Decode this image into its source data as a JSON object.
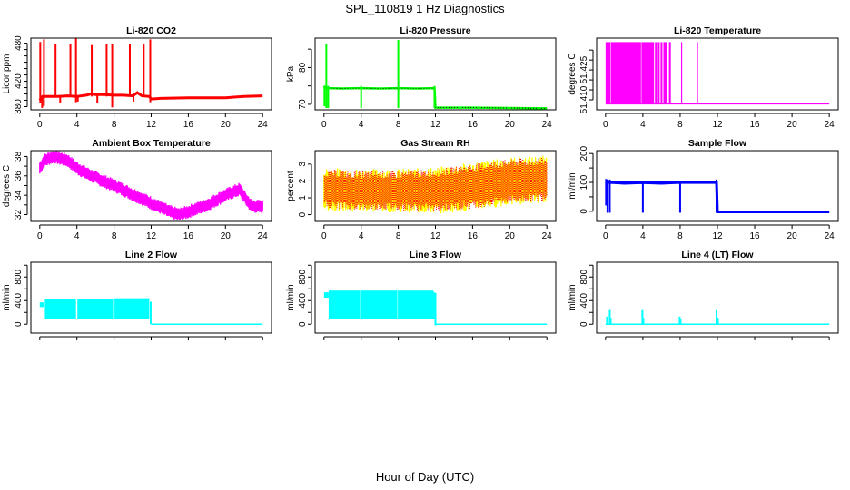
{
  "title": "SPL_110819  1 Hz Diagnostics",
  "xlabel": "Hour of Day (UTC)",
  "chart_data": [
    {
      "type": "line",
      "title": "Li-820 CO2",
      "ylabel": "Licor ppm",
      "color": "#ff0000",
      "xlim": [
        0,
        24
      ],
      "ylim": [
        375,
        488
      ],
      "xticks": [
        0,
        4,
        8,
        12,
        16,
        20,
        24
      ],
      "yticks": [
        380,
        390,
        400,
        410,
        420,
        430,
        440,
        450,
        460,
        470,
        480
      ],
      "yticklabels": {
        "380": "380",
        "420": "420",
        "480": "480"
      },
      "show_xlabels": true,
      "style": "line",
      "series": [
        {
          "name": "baseline",
          "x": [
            0,
            0.3,
            1,
            2,
            3,
            4,
            5,
            5.5,
            6,
            7,
            8,
            9,
            10,
            10.5,
            11,
            11.8,
            12,
            13,
            16,
            20,
            22,
            24
          ],
          "y": [
            390,
            396,
            396,
            396,
            397,
            396,
            398,
            400,
            399,
            399,
            398,
            398,
            397,
            402,
            397,
            396,
            392,
            393,
            394,
            394,
            396,
            397
          ]
        }
      ],
      "spikes": [
        {
          "x": 0.05,
          "lo": 385,
          "hi": 482
        },
        {
          "x": 0.25,
          "lo": 378,
          "hi": 395
        },
        {
          "x": 0.45,
          "lo": 381,
          "hi": 486
        },
        {
          "x": 1.7,
          "lo": 396,
          "hi": 478
        },
        {
          "x": 2.2,
          "lo": 386,
          "hi": 397
        },
        {
          "x": 3.3,
          "lo": 396,
          "hi": 479
        },
        {
          "x": 3.9,
          "lo": 387,
          "hi": 488
        },
        {
          "x": 4.1,
          "lo": 388,
          "hi": 398
        },
        {
          "x": 5.6,
          "lo": 396,
          "hi": 477
        },
        {
          "x": 6.2,
          "lo": 386,
          "hi": 399
        },
        {
          "x": 7.2,
          "lo": 396,
          "hi": 479
        },
        {
          "x": 7.8,
          "lo": 379,
          "hi": 478
        },
        {
          "x": 9.7,
          "lo": 397,
          "hi": 478
        },
        {
          "x": 10.1,
          "lo": 388,
          "hi": 397
        },
        {
          "x": 11.2,
          "lo": 396,
          "hi": 479
        },
        {
          "x": 11.9,
          "lo": 387,
          "hi": 486
        }
      ]
    },
    {
      "type": "line",
      "title": "Li-820 Pressure",
      "ylabel": "kPa",
      "color": "#00ff00",
      "xlim": [
        0,
        24
      ],
      "ylim": [
        68.5,
        88
      ],
      "xticks": [
        0,
        4,
        8,
        12,
        16,
        20,
        24
      ],
      "yticks": [
        70,
        75,
        80,
        85
      ],
      "yticklabels": {
        "70": "70",
        "80": "80"
      },
      "show_xlabels": true,
      "style": "line",
      "series": [
        {
          "name": "pressure",
          "x": [
            0,
            0.1,
            0.5,
            2,
            4,
            6,
            8,
            10,
            11.9,
            12,
            16,
            20,
            24
          ],
          "y": [
            75,
            74.5,
            74.4,
            74.3,
            74.4,
            74.3,
            74.4,
            74.3,
            74.4,
            69.1,
            69.1,
            69.0,
            68.9
          ]
        }
      ],
      "spikes": [
        {
          "x": 0.05,
          "lo": 69.5,
          "hi": 75
        },
        {
          "x": 0.25,
          "lo": 69,
          "hi": 86.5
        },
        {
          "x": 0.45,
          "lo": 69,
          "hi": 75
        },
        {
          "x": 4.0,
          "lo": 69,
          "hi": 75
        },
        {
          "x": 8.0,
          "lo": 69,
          "hi": 87.5
        },
        {
          "x": 11.9,
          "lo": 69,
          "hi": 75
        }
      ]
    },
    {
      "type": "line",
      "title": "Li-820 Temperature",
      "ylabel": "degrees C",
      "color": "#ff00ff",
      "xlim": [
        0,
        24
      ],
      "ylim": [
        51.405,
        51.441
      ],
      "xticks": [
        0,
        4,
        8,
        12,
        16,
        20,
        24
      ],
      "yticks": [
        51.41,
        51.415,
        51.42,
        51.425,
        51.43,
        51.435
      ],
      "yticklabels": {
        "51.41": "51.410",
        "51.425": "51.425"
      },
      "show_xlabels": true,
      "style": "oscillate",
      "oscillation": {
        "lo": 51.408,
        "hi": 51.439,
        "bands": [
          [
            0,
            0.55
          ],
          [
            0.6,
            3.8
          ],
          [
            3.85,
            5.2
          ],
          [
            5.3,
            5.5
          ],
          [
            5.6,
            5.8
          ],
          [
            5.9,
            6.1
          ],
          [
            6.2,
            6.6
          ],
          [
            6.8,
            7.0
          ],
          [
            8.1,
            8.1
          ],
          [
            9.8,
            9.9
          ]
        ],
        "baseline": 51.408
      }
    },
    {
      "type": "line",
      "title": "Ambient Box Temperature",
      "ylabel": "degrees C",
      "color": "#ff00ff",
      "xlim": [
        0,
        24
      ],
      "ylim": [
        31.3,
        38.6
      ],
      "xticks": [
        0,
        4,
        8,
        12,
        16,
        20,
        24
      ],
      "yticks": [
        32,
        33,
        34,
        35,
        36,
        37,
        38
      ],
      "yticklabels": {
        "32": "32",
        "34": "34",
        "36": "36",
        "38": "38"
      },
      "show_xlabels": true,
      "style": "band",
      "band": {
        "x": [
          0,
          0.5,
          1.5,
          3,
          4,
          6,
          8,
          10,
          12,
          14,
          15,
          16,
          18,
          20,
          21.5,
          22.2,
          22.8,
          24
        ],
        "y": [
          36.8,
          37.6,
          38.0,
          37.6,
          36.8,
          35.8,
          35.0,
          34.1,
          33.2,
          32.3,
          32.0,
          32.3,
          33.0,
          34.0,
          34.6,
          33.6,
          32.9,
          32.8
        ],
        "half_width": 0.55
      }
    },
    {
      "type": "line",
      "title": "Gas Stream RH",
      "ylabel": "percent",
      "color": "#ffff00",
      "color2": "#ff0000",
      "xlim": [
        0,
        24
      ],
      "ylim": [
        -0.4,
        3.8
      ],
      "xticks": [
        0,
        4,
        8,
        12,
        16,
        20,
        24
      ],
      "yticks": [
        0,
        1,
        2,
        3
      ],
      "yticklabels": {
        "0": "0",
        "1": "1",
        "2": "2",
        "3": "3"
      },
      "show_xlabels": true,
      "style": "noise",
      "noise": {
        "x": [
          0,
          4,
          8,
          12,
          16,
          20,
          24
        ],
        "lo": [
          0.6,
          0.5,
          0.5,
          0.4,
          0.6,
          0.9,
          1.1
        ],
        "hi": [
          2.4,
          2.3,
          2.3,
          2.4,
          2.7,
          3.0,
          3.1
        ],
        "spread": 0.6
      }
    },
    {
      "type": "line",
      "title": "Sample Flow",
      "ylabel": "ml/min",
      "color": "#0000ff",
      "xlim": [
        0,
        24
      ],
      "ylim": [
        -35,
        210
      ],
      "xticks": [
        0,
        4,
        8,
        12,
        16,
        20,
        24
      ],
      "yticks": [
        0,
        50,
        100,
        150,
        200
      ],
      "yticklabels": {
        "0": "0",
        "100": "100",
        "200": "200"
      },
      "show_xlabels": true,
      "style": "line",
      "series": [
        {
          "name": "flow",
          "x": [
            0,
            0.5,
            2,
            4,
            6,
            8,
            10,
            11.9,
            12,
            16,
            20,
            24
          ],
          "y": [
            100,
            100,
            97,
            99,
            97,
            100,
            100,
            100,
            -2,
            -2,
            -2,
            -2
          ]
        }
      ],
      "fill_segments": [
        [
          0.5,
          11.9,
          95,
          104
        ]
      ],
      "spikes": [
        {
          "x": 0.05,
          "lo": 20,
          "hi": 112
        },
        {
          "x": 0.2,
          "lo": -5,
          "hi": 110
        },
        {
          "x": 0.45,
          "lo": -5,
          "hi": 110
        },
        {
          "x": 4.0,
          "lo": -5,
          "hi": 105
        },
        {
          "x": 8.0,
          "lo": -5,
          "hi": 105
        },
        {
          "x": 11.9,
          "lo": -5,
          "hi": 110
        }
      ]
    },
    {
      "type": "line",
      "title": "Line 2 Flow",
      "ylabel": "ml/min",
      "color": "#00ffff",
      "xlim": [
        0,
        24
      ],
      "ylim": [
        -150,
        1050
      ],
      "xticks": [
        0,
        4,
        8,
        12,
        16,
        20,
        24
      ],
      "yticks": [
        0,
        200,
        400,
        600,
        800,
        1000
      ],
      "yticklabels": {
        "0": "0",
        "400": "400",
        "800": "800"
      },
      "show_xlabels": false,
      "style": "line",
      "series": [
        {
          "name": "flow",
          "x": [
            12.0,
            24
          ],
          "y": [
            0,
            0
          ]
        }
      ],
      "fill_segments": [
        [
          0.0,
          0.5,
          290,
          370
        ],
        [
          0.55,
          3.9,
          90,
          430
        ],
        [
          4.05,
          7.9,
          90,
          430
        ],
        [
          8.05,
          11.8,
          90,
          440
        ]
      ],
      "spikes": [
        {
          "x": 11.95,
          "lo": 0,
          "hi": 380
        }
      ]
    },
    {
      "type": "line",
      "title": "Line 3 Flow",
      "ylabel": "ml/min",
      "color": "#00ffff",
      "xlim": [
        0,
        24
      ],
      "ylim": [
        -150,
        1050
      ],
      "xticks": [
        0,
        4,
        8,
        12,
        16,
        20,
        24
      ],
      "yticks": [
        0,
        200,
        400,
        600,
        800,
        1000
      ],
      "yticklabels": {
        "0": "0",
        "400": "400",
        "800": "800"
      },
      "show_xlabels": false,
      "style": "line",
      "series": [
        {
          "name": "flow",
          "x": [
            12.0,
            24
          ],
          "y": [
            0,
            0
          ]
        }
      ],
      "fill_segments": [
        [
          0.0,
          0.5,
          450,
          540
        ],
        [
          0.5,
          3.9,
          90,
          570
        ],
        [
          3.95,
          7.9,
          90,
          570
        ],
        [
          7.95,
          11.8,
          90,
          570
        ],
        [
          11.8,
          11.95,
          90,
          540
        ]
      ],
      "spikes": [
        {
          "x": 12.0,
          "lo": -20,
          "hi": 530
        }
      ]
    },
    {
      "type": "line",
      "title": "Line 4 (LT) Flow",
      "ylabel": "ml/min",
      "color": "#00ffff",
      "xlim": [
        0,
        24
      ],
      "ylim": [
        -150,
        1050
      ],
      "xticks": [
        0,
        4,
        8,
        12,
        16,
        20,
        24
      ],
      "yticks": [
        0,
        200,
        400,
        600,
        800,
        1000
      ],
      "yticklabels": {
        "0": "0",
        "400": "400",
        "800": "800"
      },
      "show_xlabels": false,
      "style": "line",
      "series": [
        {
          "name": "flow",
          "x": [
            0,
            24
          ],
          "y": [
            0,
            0
          ]
        }
      ],
      "spikes": [
        {
          "x": 0.15,
          "lo": 0,
          "hi": 130
        },
        {
          "x": 0.45,
          "lo": 0,
          "hi": 240
        },
        {
          "x": 0.55,
          "lo": 0,
          "hi": 110
        },
        {
          "x": 3.95,
          "lo": 0,
          "hi": 240
        },
        {
          "x": 4.05,
          "lo": 0,
          "hi": 110
        },
        {
          "x": 7.95,
          "lo": 0,
          "hi": 130
        },
        {
          "x": 8.05,
          "lo": 0,
          "hi": 90
        },
        {
          "x": 11.9,
          "lo": 0,
          "hi": 240
        },
        {
          "x": 12.05,
          "lo": 0,
          "hi": 110
        }
      ]
    }
  ]
}
